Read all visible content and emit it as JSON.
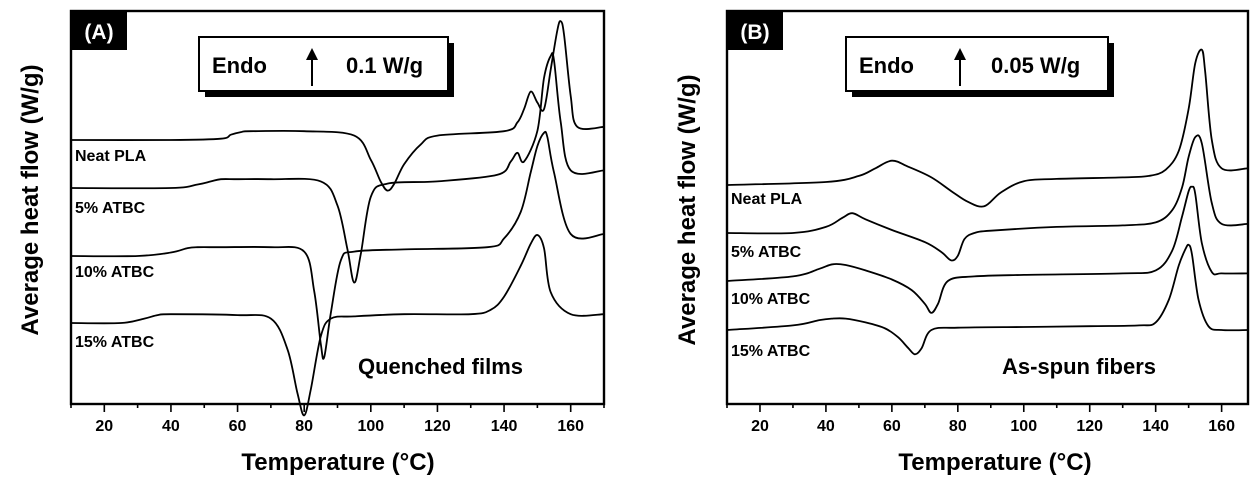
{
  "chart_data": [
    {
      "type": "line",
      "panel_label": "(A)",
      "title": "",
      "xlabel": "Temperature (°C)",
      "ylabel": "Average heat flow (W/g)",
      "xlim": [
        10,
        170
      ],
      "xticks": [
        20,
        40,
        60,
        80,
        100,
        120,
        140,
        160
      ],
      "y_axis_ticks": false,
      "grid": false,
      "annotation": "Quenched films",
      "scale_bar": {
        "label": "Endo",
        "value": "0.1 W/g",
        "direction": "up"
      },
      "series": [
        {
          "name": "Neat PLA",
          "x": [
            10,
            40,
            55,
            58,
            61,
            64,
            80,
            95,
            100,
            103,
            105,
            107,
            110,
            115,
            120,
            140,
            144,
            146,
            148,
            150,
            152,
            154,
            156,
            157,
            158,
            160,
            162,
            170
          ],
          "y": [
            0.0,
            0.0,
            0.003,
            0.012,
            0.018,
            0.02,
            0.02,
            0.01,
            -0.045,
            -0.095,
            -0.115,
            -0.1,
            -0.055,
            -0.01,
            0.01,
            0.02,
            0.04,
            0.07,
            0.11,
            0.085,
            0.07,
            0.16,
            0.25,
            0.27,
            0.24,
            0.1,
            0.03,
            0.03
          ]
        },
        {
          "name": "5% ATBC",
          "x": [
            10,
            40,
            48,
            52,
            55,
            60,
            70,
            85,
            90,
            93,
            95,
            97,
            100,
            105,
            120,
            138,
            142,
            144,
            146,
            150,
            152,
            154,
            155,
            157,
            160,
            170
          ],
          "y": [
            0.0,
            0.0,
            0.008,
            0.015,
            0.02,
            0.02,
            0.02,
            0.015,
            -0.04,
            -0.14,
            -0.215,
            -0.15,
            -0.02,
            0.01,
            0.015,
            0.03,
            0.06,
            0.08,
            0.06,
            0.13,
            0.25,
            0.3,
            0.29,
            0.15,
            0.04,
            0.04
          ]
        },
        {
          "name": "10% ATBC",
          "x": [
            10,
            30,
            40,
            45,
            48,
            55,
            70,
            80,
            83,
            85,
            86,
            88,
            91,
            95,
            110,
            135,
            140,
            145,
            148,
            150,
            152,
            153,
            155,
            160,
            170
          ],
          "y": [
            0.0,
            0.0,
            0.008,
            0.018,
            0.02,
            0.02,
            0.02,
            0.01,
            -0.08,
            -0.2,
            -0.23,
            -0.13,
            -0.01,
            0.01,
            0.015,
            0.02,
            0.04,
            0.1,
            0.19,
            0.25,
            0.28,
            0.27,
            0.19,
            0.05,
            0.05
          ]
        },
        {
          "name": "15% ATBC",
          "x": [
            10,
            25,
            32,
            36,
            40,
            60,
            70,
            75,
            78,
            80,
            82,
            85,
            88,
            95,
            110,
            130,
            136,
            140,
            145,
            148,
            150,
            152,
            154,
            160,
            170
          ],
          "y": [
            0.0,
            0.0,
            0.01,
            0.018,
            0.02,
            0.018,
            0.01,
            -0.06,
            -0.16,
            -0.21,
            -0.15,
            -0.03,
            0.01,
            0.015,
            0.02,
            0.02,
            0.03,
            0.06,
            0.13,
            0.18,
            0.2,
            0.17,
            0.07,
            0.02,
            0.02
          ]
        }
      ]
    },
    {
      "type": "line",
      "panel_label": "(B)",
      "title": "",
      "xlabel": "Temperature (°C)",
      "ylabel": "Average heat flow (W/g)",
      "xlim": [
        10,
        168
      ],
      "xticks": [
        20,
        40,
        60,
        80,
        100,
        120,
        140,
        160
      ],
      "y_axis_ticks": false,
      "grid": false,
      "annotation": "As-spun fibers",
      "scale_bar": {
        "label": "Endo",
        "value": "0.05 W/g",
        "direction": "up"
      },
      "series": [
        {
          "name": "Neat PLA",
          "x": [
            10,
            40,
            50,
            55,
            60,
            65,
            72,
            78,
            83,
            88,
            93,
            100,
            110,
            130,
            138,
            143,
            147,
            150,
            152,
            154,
            155,
            157,
            160,
            168
          ],
          "y": [
            0.0,
            0.004,
            0.012,
            0.022,
            0.032,
            0.024,
            0.01,
            -0.008,
            -0.022,
            -0.028,
            -0.01,
            0.005,
            0.008,
            0.01,
            0.012,
            0.02,
            0.045,
            0.1,
            0.16,
            0.178,
            0.15,
            0.06,
            0.022,
            0.022
          ]
        },
        {
          "name": "5% ATBC",
          "x": [
            10,
            30,
            40,
            45,
            48,
            52,
            60,
            70,
            75,
            78,
            80,
            82,
            85,
            90,
            110,
            130,
            140,
            145,
            148,
            150,
            152,
            154,
            157,
            160,
            168
          ],
          "y": [
            0.0,
            0.0,
            0.008,
            0.02,
            0.026,
            0.018,
            0.004,
            -0.012,
            -0.025,
            -0.036,
            -0.03,
            -0.008,
            0.0,
            0.003,
            0.008,
            0.01,
            0.014,
            0.03,
            0.06,
            0.1,
            0.126,
            0.118,
            0.04,
            0.012,
            0.012
          ]
        },
        {
          "name": "10% ATBC",
          "x": [
            10,
            30,
            38,
            42,
            46,
            52,
            60,
            66,
            70,
            72,
            74,
            77,
            85,
            100,
            130,
            140,
            145,
            148,
            150,
            151,
            152,
            154,
            157,
            160,
            168
          ],
          "y": [
            0.0,
            0.006,
            0.016,
            0.022,
            0.021,
            0.014,
            0.002,
            -0.012,
            -0.03,
            -0.042,
            -0.03,
            0.0,
            0.006,
            0.008,
            0.01,
            0.014,
            0.04,
            0.085,
            0.118,
            0.124,
            0.115,
            0.05,
            0.012,
            0.01,
            0.01
          ]
        },
        {
          "name": "15% ATBC",
          "x": [
            10,
            30,
            38,
            42,
            46,
            52,
            58,
            62,
            65,
            67,
            69,
            72,
            80,
            100,
            120,
            135,
            140,
            144,
            147,
            149,
            150,
            151,
            153,
            156,
            160,
            168
          ],
          "y": [
            0.0,
            0.006,
            0.013,
            0.015,
            0.015,
            0.01,
            0.002,
            -0.01,
            -0.024,
            -0.032,
            -0.024,
            0.0,
            0.003,
            0.004,
            0.005,
            0.006,
            0.01,
            0.04,
            0.085,
            0.106,
            0.112,
            0.1,
            0.04,
            0.005,
            0.0,
            0.0
          ]
        }
      ]
    }
  ]
}
